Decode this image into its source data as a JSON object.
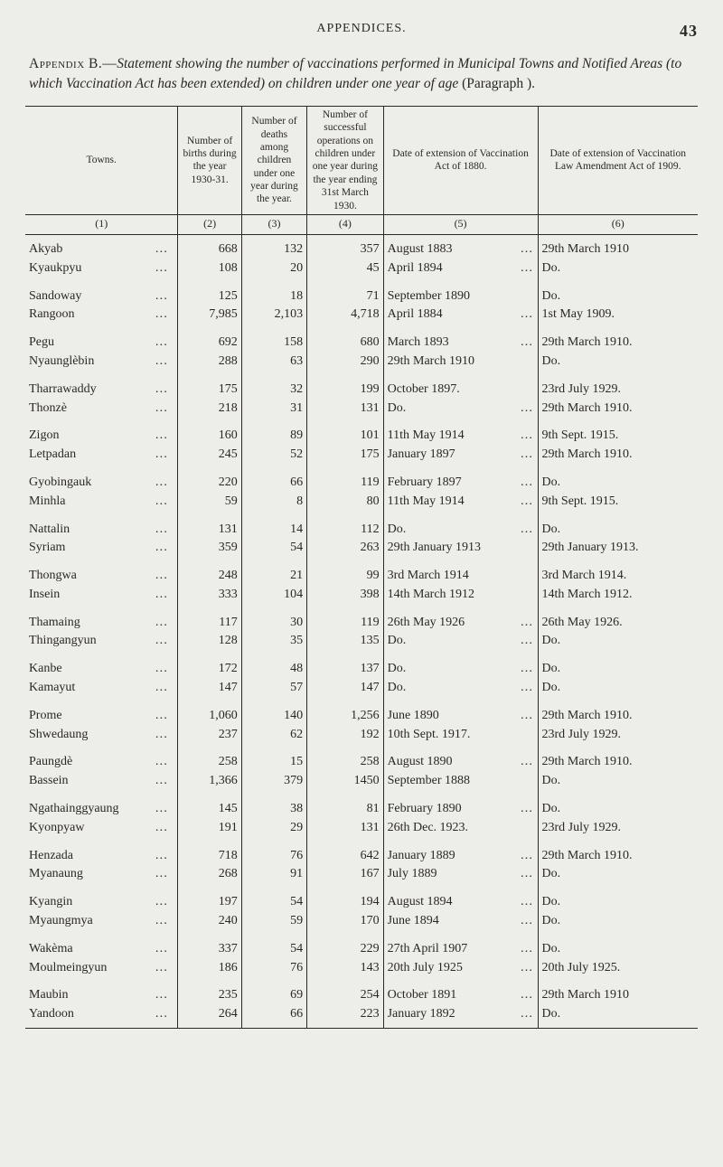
{
  "page": {
    "running_header": "APPENDICES.",
    "page_number": "43"
  },
  "title": {
    "lead": "Appendix B.—",
    "body_italic": "Statement showing the number of vaccinations performed in Municipal Towns and Notified Areas (to which Vaccination Act has been extended) on children under one year of age",
    "tail_roman": " (Paragraph   )."
  },
  "columns": {
    "c1": "Towns.",
    "c2": "Number of births during the year 1930-31.",
    "c3": "Number of deaths among children under one year during the year.",
    "c4": "Number of successful operations on children under one year during the year ending 31st March 1930.",
    "c5": "Date of extension of Vaccination Act of 1880.",
    "c6": "Date of extension of Vaccination Law Amendment Act of 1909.",
    "i1": "(1)",
    "i2": "(2)",
    "i3": "(3)",
    "i4": "(4)",
    "i5": "(5)",
    "i6": "(6)"
  },
  "groups": [
    {
      "rows": [
        {
          "town": "Akyab",
          "d": "…",
          "c2": "668",
          "c3": "132",
          "c4": "357",
          "ext": "August 1883",
          "extTrail": "…",
          "note": "29th March 1910"
        },
        {
          "town": "Kyaukpyu",
          "d": "…",
          "c2": "108",
          "c3": "20",
          "c4": "45",
          "ext": "April 1894",
          "extTrail": "…",
          "note": "Do."
        }
      ]
    },
    {
      "rows": [
        {
          "town": "Sandoway",
          "d": "…",
          "c2": "125",
          "c3": "18",
          "c4": "71",
          "ext": "September 1890",
          "extTrail": "",
          "note": "Do."
        },
        {
          "town": "Rangoon",
          "d": "…",
          "c2": "7,985",
          "c3": "2,103",
          "c4": "4,718",
          "ext": "April 1884",
          "extTrail": "…",
          "note": "1st May 1909."
        }
      ]
    },
    {
      "rows": [
        {
          "town": "Pegu",
          "d": "…",
          "c2": "692",
          "c3": "158",
          "c4": "680",
          "ext": "March 1893",
          "extTrail": "…",
          "note": "29th March 1910."
        },
        {
          "town": "Nyaunglèbin",
          "d": "…",
          "c2": "288",
          "c3": "63",
          "c4": "290",
          "ext": "29th March 1910",
          "extTrail": "",
          "note": "Do."
        }
      ]
    },
    {
      "rows": [
        {
          "town": "Tharrawaddy",
          "d": "…",
          "c2": "175",
          "c3": "32",
          "c4": "199",
          "ext": "October 1897.",
          "extTrail": "",
          "note": "23rd July 1929."
        },
        {
          "town": "Thonzè",
          "d": "…",
          "c2": "218",
          "c3": "31",
          "c4": "131",
          "ext": "Do.",
          "extTrail": "…",
          "note": "29th March 1910."
        }
      ]
    },
    {
      "rows": [
        {
          "town": "Zigon",
          "d": "…",
          "c2": "160",
          "c3": "89",
          "c4": "101",
          "ext": "11th May 1914",
          "extTrail": "…",
          "note": "9th Sept. 1915."
        },
        {
          "town": "Letpadan",
          "d": "…",
          "c2": "245",
          "c3": "52",
          "c4": "175",
          "ext": "January 1897",
          "extTrail": "…",
          "note": "29th March 1910."
        }
      ]
    },
    {
      "rows": [
        {
          "town": "Gyobingauk",
          "d": "…",
          "c2": "220",
          "c3": "66",
          "c4": "119",
          "ext": "February 1897",
          "extTrail": "…",
          "note": "Do."
        },
        {
          "town": "Minhla",
          "d": "…",
          "c2": "59",
          "c3": "8",
          "c4": "80",
          "ext": "11th May 1914",
          "extTrail": "…",
          "note": "9th Sept. 1915."
        }
      ]
    },
    {
      "rows": [
        {
          "town": "Nattalin",
          "d": "…",
          "c2": "131",
          "c3": "14",
          "c4": "112",
          "ext": "Do.",
          "extTrail": "…",
          "note": "Do."
        },
        {
          "town": "Syriam",
          "d": "…",
          "c2": "359",
          "c3": "54",
          "c4": "263",
          "ext": "29th January 1913",
          "extTrail": "",
          "note": "29th January 1913."
        }
      ]
    },
    {
      "rows": [
        {
          "town": "Thongwa",
          "d": "…",
          "c2": "248",
          "c3": "21",
          "c4": "99",
          "ext": "3rd March 1914",
          "extTrail": "",
          "note": "3rd March 1914."
        },
        {
          "town": "Insein",
          "d": "…",
          "c2": "333",
          "c3": "104",
          "c4": "398",
          "ext": "14th March 1912",
          "extTrail": "",
          "note": "14th March 1912."
        }
      ]
    },
    {
      "rows": [
        {
          "town": "Thamaing",
          "d": "…",
          "c2": "117",
          "c3": "30",
          "c4": "119",
          "ext": "26th May 1926",
          "extTrail": "…",
          "note": "26th May 1926."
        },
        {
          "town": "Thingangyun",
          "d": "…",
          "c2": "128",
          "c3": "35",
          "c4": "135",
          "ext": "Do.",
          "extTrail": "…",
          "note": "Do."
        }
      ]
    },
    {
      "rows": [
        {
          "town": "Kanbe",
          "d": "…",
          "c2": "172",
          "c3": "48",
          "c4": "137",
          "ext": "Do.",
          "extTrail": "…",
          "note": "Do."
        },
        {
          "town": "Kamayut",
          "d": "…",
          "c2": "147",
          "c3": "57",
          "c4": "147",
          "ext": "Do.",
          "extTrail": "…",
          "note": "Do."
        }
      ]
    },
    {
      "rows": [
        {
          "town": "Prome",
          "d": "…",
          "c2": "1,060",
          "c3": "140",
          "c4": "1,256",
          "ext": "June 1890",
          "extTrail": "…",
          "note": "29th March 1910."
        },
        {
          "town": "Shwedaung",
          "d": "…",
          "c2": "237",
          "c3": "62",
          "c4": "192",
          "ext": "10th Sept. 1917.",
          "extTrail": "",
          "note": "23rd July 1929."
        }
      ]
    },
    {
      "rows": [
        {
          "town": "Paungdè",
          "d": "…",
          "c2": "258",
          "c3": "15",
          "c4": "258",
          "ext": "August 1890",
          "extTrail": "…",
          "note": "29th March 1910."
        },
        {
          "town": "Bassein",
          "d": "…",
          "c2": "1,366",
          "c3": "379",
          "c4": "1450",
          "ext": "September 1888",
          "extTrail": "",
          "note": "Do."
        }
      ]
    },
    {
      "rows": [
        {
          "town": "Ngathainggyaung",
          "d": "…",
          "c2": "145",
          "c3": "38",
          "c4": "81",
          "ext": "February 1890",
          "extTrail": "…",
          "note": "Do."
        },
        {
          "town": "Kyonpyaw",
          "d": "…",
          "c2": "191",
          "c3": "29",
          "c4": "131",
          "ext": "26th Dec. 1923.",
          "extTrail": "",
          "note": "23rd July 1929."
        }
      ]
    },
    {
      "rows": [
        {
          "town": "Henzada",
          "d": "…",
          "c2": "718",
          "c3": "76",
          "c4": "642",
          "ext": "January 1889",
          "extTrail": "…",
          "note": "29th March 1910."
        },
        {
          "town": "Myanaung",
          "d": "…",
          "c2": "268",
          "c3": "91",
          "c4": "167",
          "ext": "July 1889",
          "extTrail": "…",
          "note": "Do."
        }
      ]
    },
    {
      "rows": [
        {
          "town": "Kyangin",
          "d": "…",
          "c2": "197",
          "c3": "54",
          "c4": "194",
          "ext": "August 1894",
          "extTrail": "…",
          "note": "Do."
        },
        {
          "town": "Myaungmya",
          "d": "…",
          "c2": "240",
          "c3": "59",
          "c4": "170",
          "ext": "June 1894",
          "extTrail": "…",
          "note": "Do."
        }
      ]
    },
    {
      "rows": [
        {
          "town": "Wakèma",
          "d": "…",
          "c2": "337",
          "c3": "54",
          "c4": "229",
          "ext": "27th April 1907",
          "extTrail": "…",
          "note": "Do."
        },
        {
          "town": "Moulmeingyun",
          "d": "…",
          "c2": "186",
          "c3": "76",
          "c4": "143",
          "ext": "20th July 1925",
          "extTrail": "…",
          "note": "20th July 1925."
        }
      ]
    },
    {
      "rows": [
        {
          "town": "Maubin",
          "d": "…",
          "c2": "235",
          "c3": "69",
          "c4": "254",
          "ext": "October 1891",
          "extTrail": "…",
          "note": "29th March 1910"
        },
        {
          "town": "Yandoon",
          "d": "…",
          "c2": "264",
          "c3": "66",
          "c4": "223",
          "ext": "January 1892",
          "extTrail": "…",
          "note": "Do."
        }
      ]
    }
  ]
}
